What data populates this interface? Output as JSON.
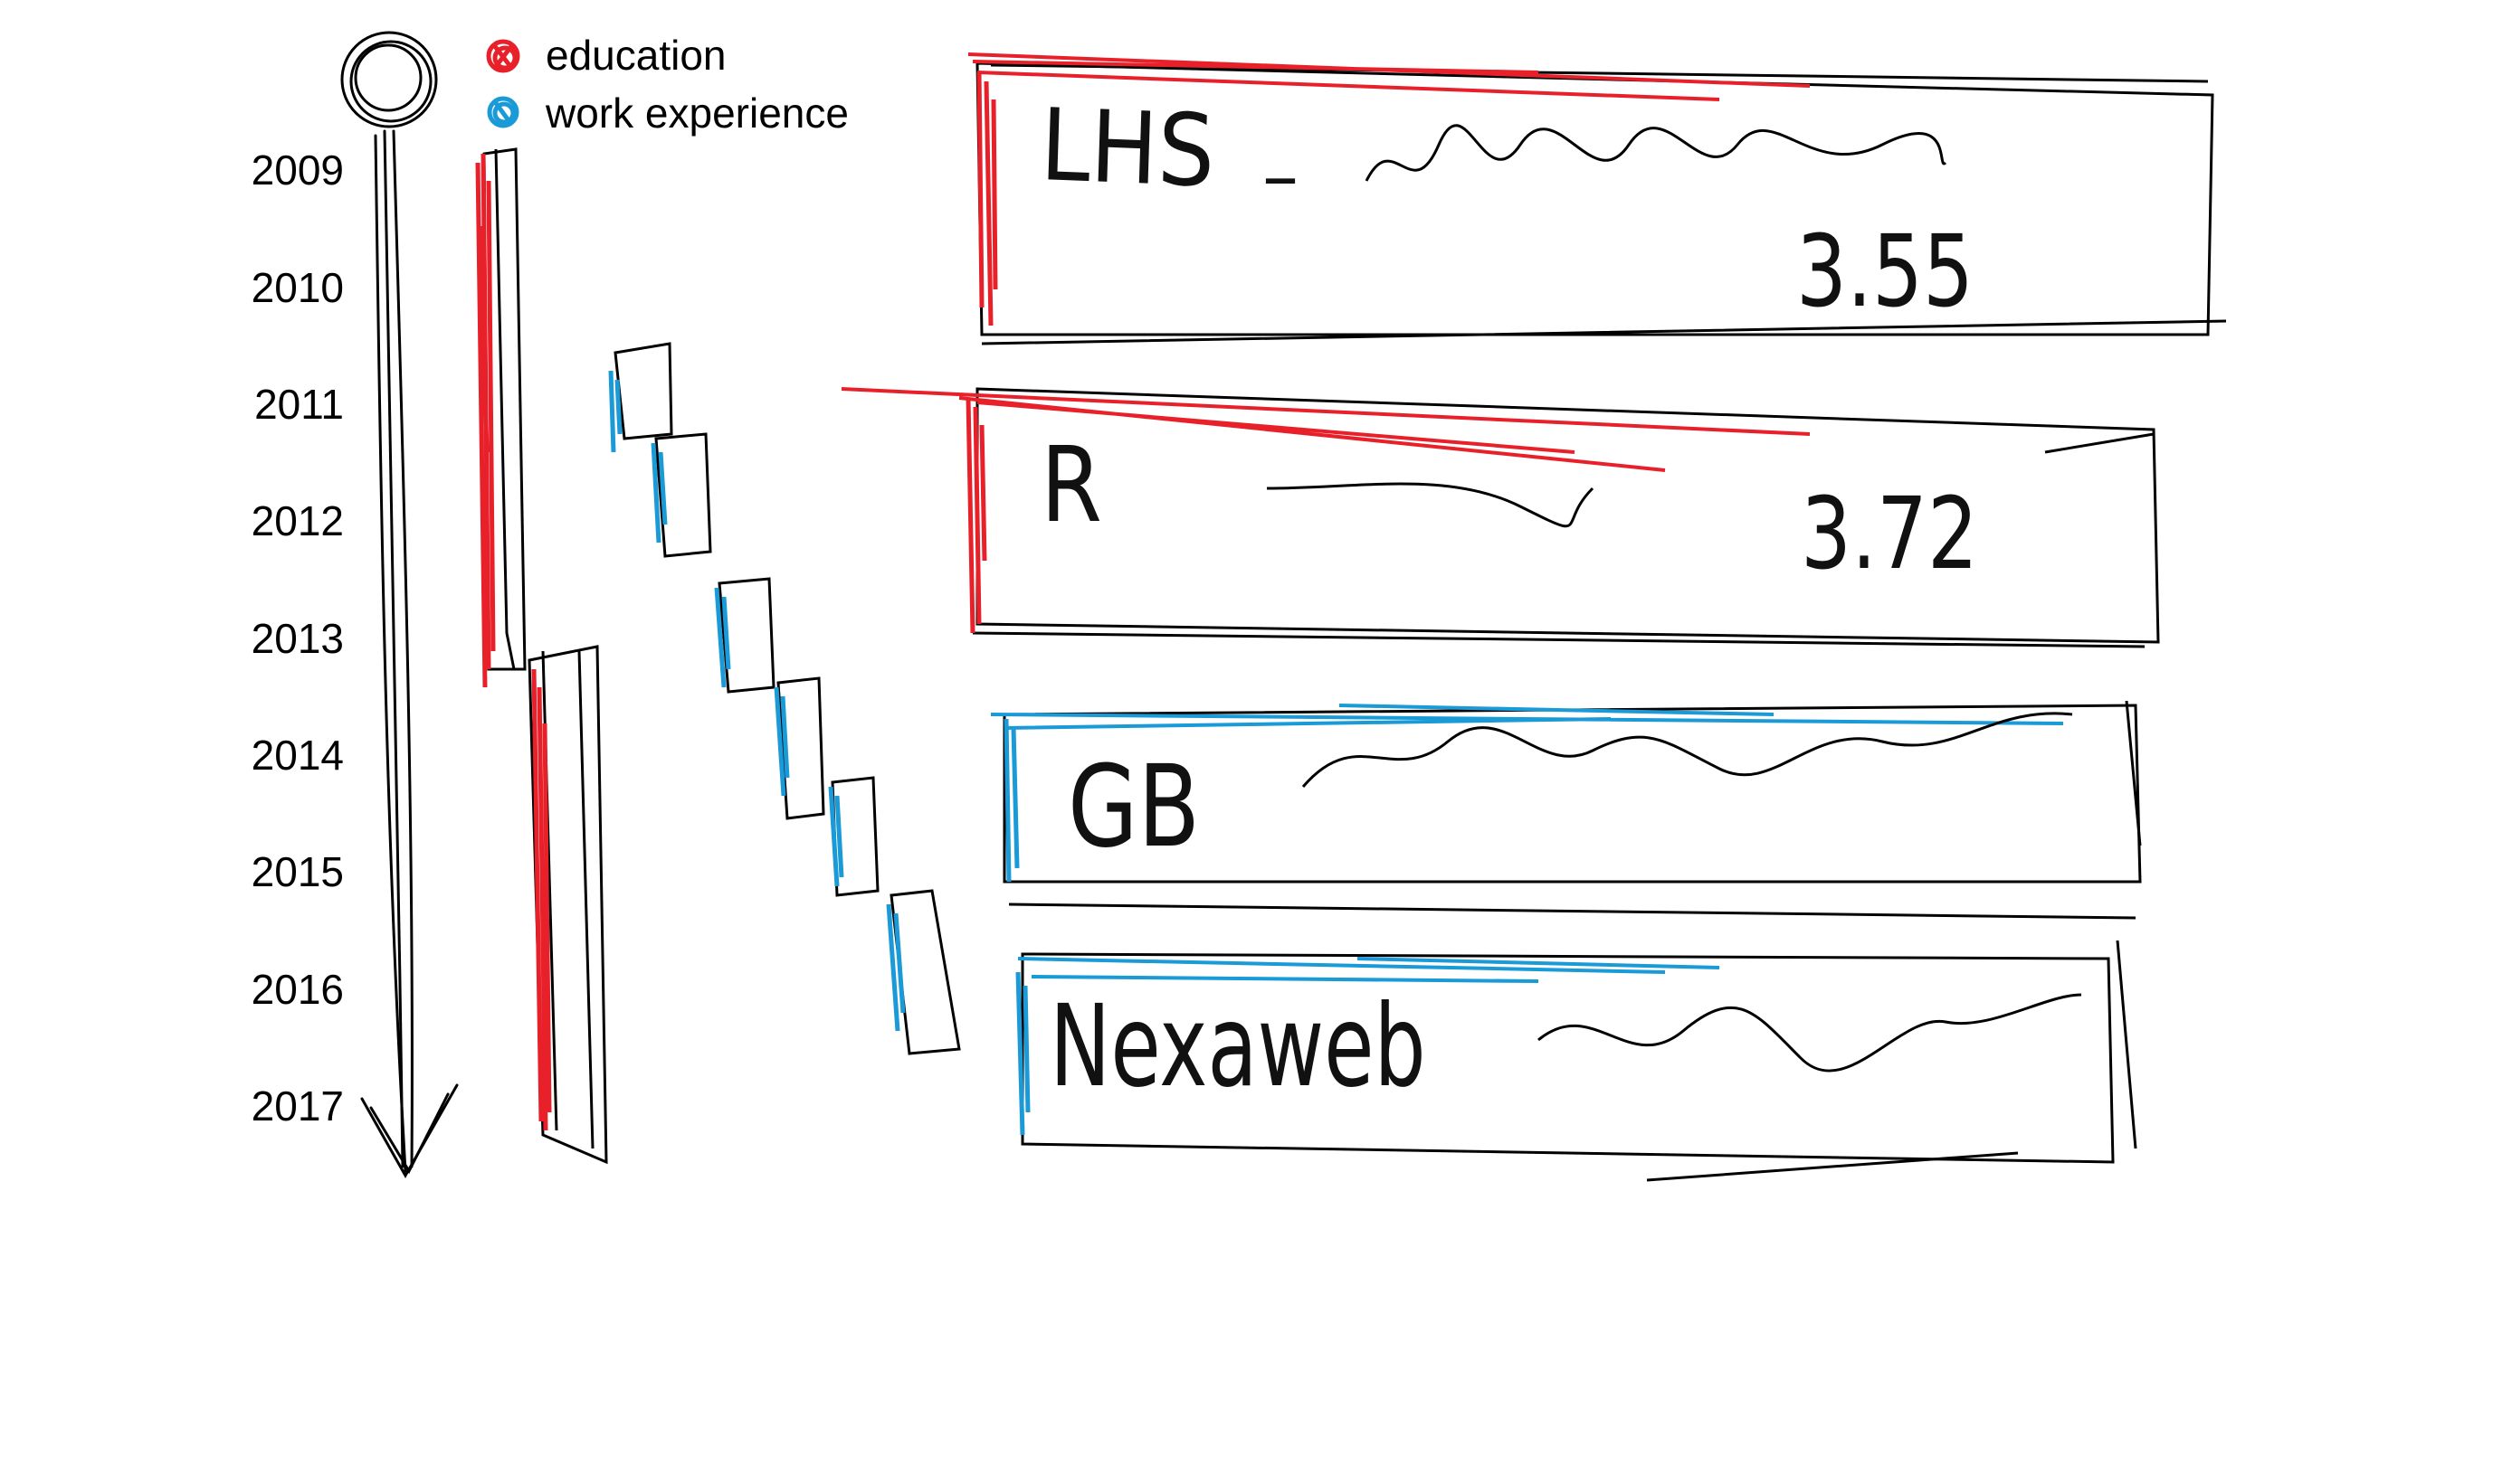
{
  "legend": {
    "education": {
      "label": "education",
      "color": "#e8202a"
    },
    "work": {
      "label": "work experience",
      "color": "#1a9ad6"
    }
  },
  "timeline": {
    "years": [
      "2009",
      "2010",
      "2011",
      "2012",
      "2013",
      "2014",
      "2015",
      "2016",
      "2017"
    ]
  },
  "entries": [
    {
      "kind": "education",
      "name": "LHS",
      "score": "3.55"
    },
    {
      "kind": "education",
      "name": "R",
      "score": "3.72"
    },
    {
      "kind": "work",
      "name": "GB",
      "score": ""
    },
    {
      "kind": "work",
      "name": "Nexaweb",
      "score": ""
    }
  ],
  "colors": {
    "ink": "#000000",
    "education": "#e8202a",
    "work": "#1a9ad6"
  }
}
